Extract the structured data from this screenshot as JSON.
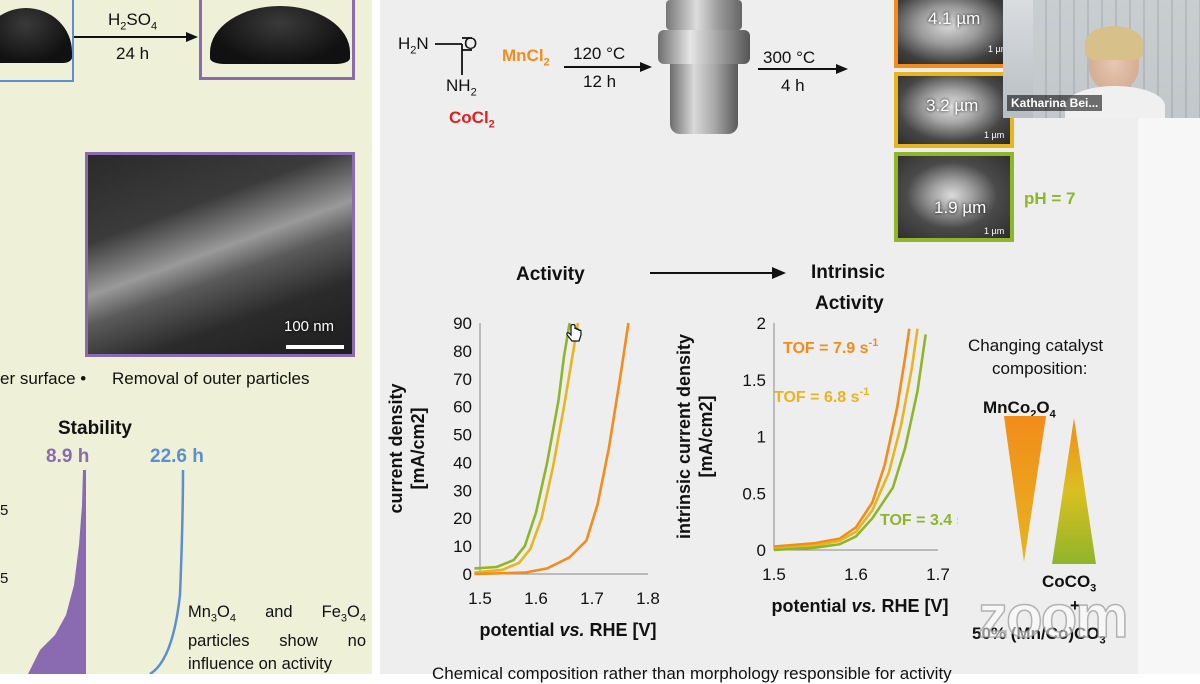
{
  "left": {
    "reagent_top": "H2SO4",
    "reagent_sub": "4",
    "reagent_main": "H",
    "reagent_2": "2",
    "reagent_so": "SO",
    "time_top": "24 h",
    "sem_scale": "100 nm",
    "caption_left": "er surface •",
    "caption_right": "Removal of outer particles",
    "stability_title": "Stability",
    "time_purple": "8.9 h",
    "time_blue": "22.6 h",
    "note_line1": "Mn3O4 and Fe3O4",
    "note_line2": "particles show no",
    "note_line3": "influence on activity",
    "note_mn": "Mn",
    "note_o": "O",
    "note_and": " and Fe",
    "note_3": "3",
    "note_4": "4",
    "note_rest": "particles   show   no",
    "note_infl": "influence on activity",
    "tick_a": "5",
    "tick_b": "5"
  },
  "synthesis": {
    "h2n": "H",
    "h2n_sub": "2",
    "h2n_n": "N",
    "o": "O",
    "nh": "NH",
    "nh_sub": "2",
    "mncl": "MnCl",
    "mncl_sub": "2",
    "cocl": "CoCl",
    "cocl_sub": "2",
    "cond1_temp": "120 °C",
    "cond1_time": "12 h",
    "cond2_temp": "300 °C",
    "cond2_time": "4 h",
    "size1": "4.1 µm",
    "size2": "3.2 µm",
    "size3": "1.9 µm",
    "scale": "1 µm",
    "ph": "pH = 7"
  },
  "headers": {
    "activity": "Activity",
    "intrinsic_line1": "Intrinsic",
    "intrinsic_line2": "Activity"
  },
  "legend": {
    "title_line1": "Changing catalyst",
    "title_line2": "composition:",
    "top_main": "MnCo",
    "top_s1": "2",
    "top_o": "O",
    "top_s2": "4",
    "bottom1_main": "CoCO",
    "bottom1_sub": "3",
    "plus": "+",
    "bottom2_a": "50% (Mn/Co)CO",
    "bottom2_sub": "3"
  },
  "footer_text": "Chemical composition rather than morphology responsible for activity",
  "video": {
    "name": "Katharina Bei...",
    "watermark": "zoom"
  },
  "colors": {
    "orange": "#f28c1a",
    "yellow": "#e6b520",
    "green": "#8fb52a",
    "purple": "#8a6bb1",
    "blue": "#5b8fd0",
    "red": "#e02020"
  },
  "chart_data": [
    {
      "type": "line",
      "xlabel": "potential vs. RHE [V]",
      "ylabel_line1": "current density",
      "ylabel_line2": "[mA/cm2]",
      "xlim": [
        1.5,
        1.8
      ],
      "ylim": [
        0,
        90
      ],
      "x_ticks": [
        "1.5",
        "1.6",
        "1.7",
        "1.8"
      ],
      "y_ticks": [
        "0",
        "10",
        "20",
        "30",
        "40",
        "50",
        "60",
        "70",
        "80",
        "90"
      ],
      "series": [
        {
          "color": "#8fb52a",
          "points": [
            [
              1.49,
              2
            ],
            [
              1.53,
              2.5
            ],
            [
              1.56,
              5
            ],
            [
              1.58,
              10
            ],
            [
              1.6,
              22
            ],
            [
              1.62,
              40
            ],
            [
              1.64,
              62
            ],
            [
              1.65,
              78
            ],
            [
              1.66,
              90
            ]
          ]
        },
        {
          "color": "#e6b520",
          "points": [
            [
              1.49,
              0.5
            ],
            [
              1.54,
              1.5
            ],
            [
              1.57,
              4
            ],
            [
              1.59,
              9
            ],
            [
              1.61,
              20
            ],
            [
              1.63,
              38
            ],
            [
              1.65,
              60
            ],
            [
              1.665,
              78
            ],
            [
              1.675,
              90
            ]
          ]
        },
        {
          "color": "#f28c1a",
          "points": [
            [
              1.49,
              0
            ],
            [
              1.58,
              0.5
            ],
            [
              1.62,
              2
            ],
            [
              1.66,
              6
            ],
            [
              1.69,
              12
            ],
            [
              1.71,
              25
            ],
            [
              1.73,
              45
            ],
            [
              1.75,
              70
            ],
            [
              1.765,
              90
            ]
          ]
        }
      ]
    },
    {
      "type": "line",
      "xlabel": "potential vs. RHE [V]",
      "ylabel_line1": "intrinsic current density",
      "ylabel_line2": "[mA/cm2]",
      "xlim": [
        1.5,
        1.7
      ],
      "ylim": [
        0,
        2
      ],
      "x_ticks": [
        "1.5",
        "1.6",
        "1.7"
      ],
      "y_ticks": [
        "0",
        "0.5",
        "1",
        "1.5",
        "2"
      ],
      "annotations": [
        {
          "text": "TOF = 7.9 s",
          "sup": "-1",
          "color": "#f28c1a"
        },
        {
          "text": "TOF = 6.8 s",
          "sup": "-1",
          "color": "#e6b520"
        },
        {
          "text": "TOF = 3.4 s",
          "sup": "-1",
          "color": "#8fb52a"
        }
      ],
      "series": [
        {
          "color": "#f28c1a",
          "points": [
            [
              1.5,
              0.03
            ],
            [
              1.55,
              0.06
            ],
            [
              1.58,
              0.1
            ],
            [
              1.6,
              0.2
            ],
            [
              1.62,
              0.42
            ],
            [
              1.635,
              0.75
            ],
            [
              1.65,
              1.25
            ],
            [
              1.66,
              1.7
            ],
            [
              1.665,
              1.95
            ]
          ]
        },
        {
          "color": "#e6b520",
          "points": [
            [
              1.5,
              0.01
            ],
            [
              1.55,
              0.04
            ],
            [
              1.58,
              0.08
            ],
            [
              1.6,
              0.16
            ],
            [
              1.62,
              0.35
            ],
            [
              1.64,
              0.68
            ],
            [
              1.655,
              1.1
            ],
            [
              1.668,
              1.6
            ],
            [
              1.675,
              1.95
            ]
          ]
        },
        {
          "color": "#8fb52a",
          "points": [
            [
              1.5,
              0.0
            ],
            [
              1.55,
              0.02
            ],
            [
              1.58,
              0.05
            ],
            [
              1.6,
              0.12
            ],
            [
              1.62,
              0.28
            ],
            [
              1.645,
              0.55
            ],
            [
              1.66,
              0.9
            ],
            [
              1.675,
              1.4
            ],
            [
              1.685,
              1.9
            ]
          ]
        }
      ]
    }
  ]
}
